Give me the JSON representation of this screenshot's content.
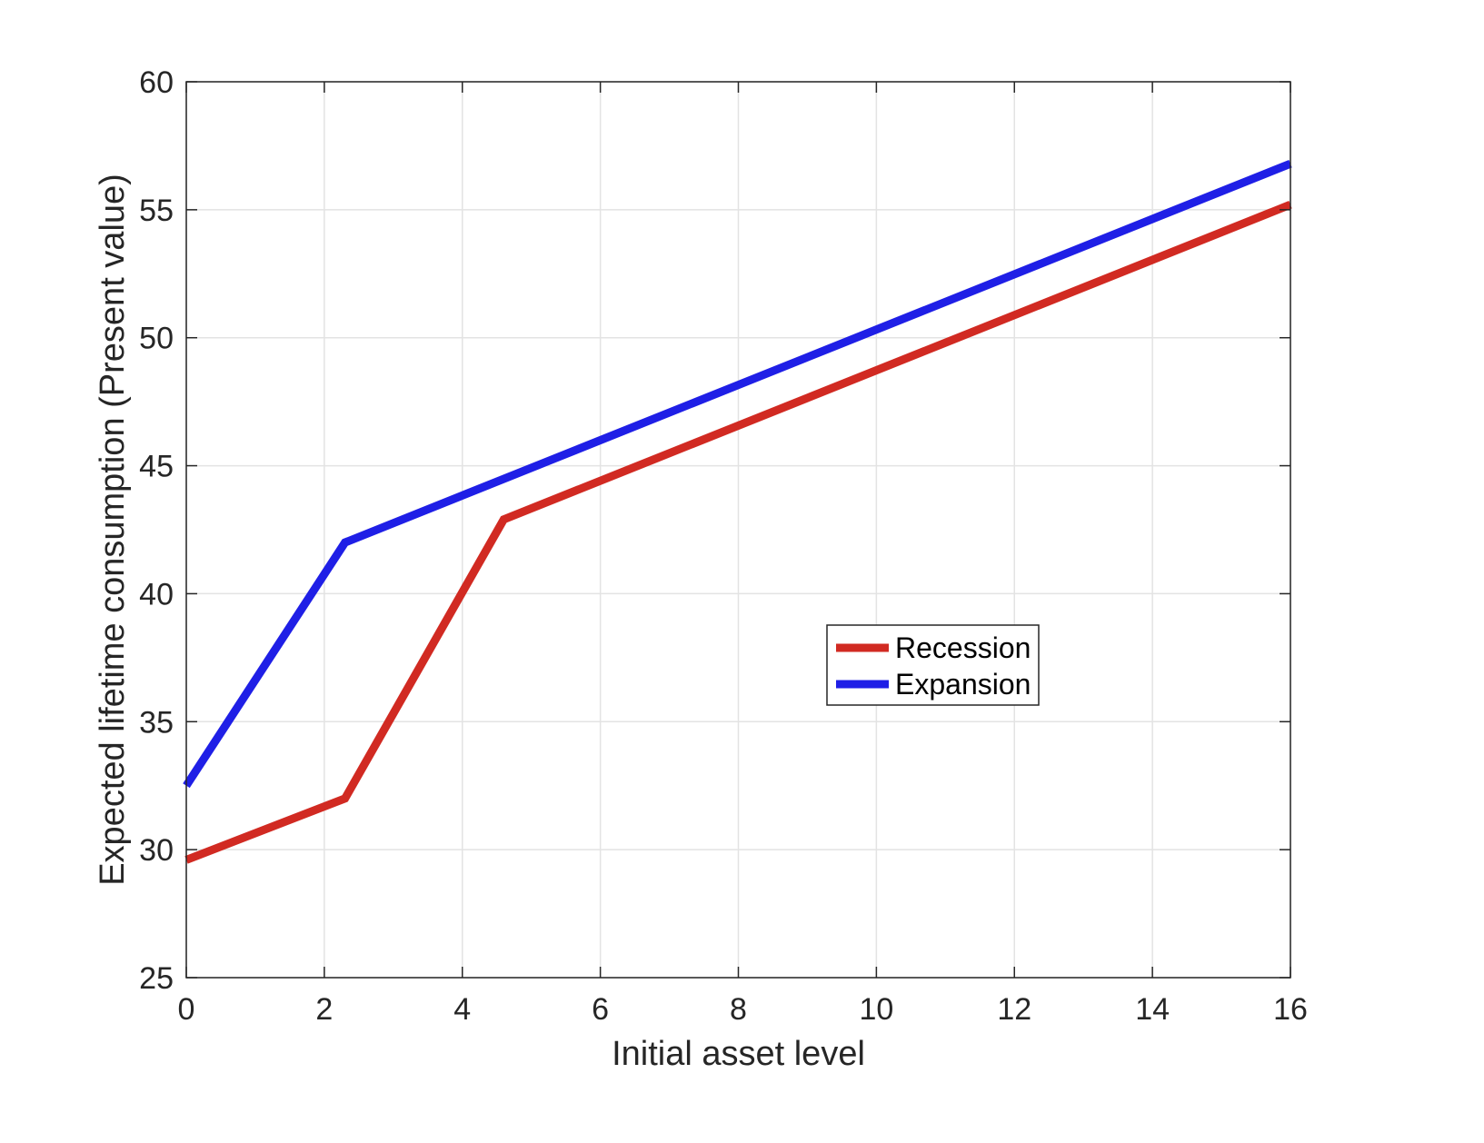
{
  "chart_data": {
    "type": "line",
    "xlabel": "Initial asset level",
    "ylabel": "Expected lifetime consumption (Present value)",
    "xlim": [
      0,
      16
    ],
    "ylim": [
      25,
      60
    ],
    "xticks": [
      0,
      2,
      4,
      6,
      8,
      10,
      12,
      14,
      16
    ],
    "yticks": [
      25,
      30,
      35,
      40,
      45,
      50,
      55,
      60
    ],
    "grid": true,
    "legend": {
      "placement": "center-right"
    },
    "series": [
      {
        "name": "Recession",
        "color": "#d12a22",
        "x": [
          0,
          2.3,
          4.6,
          16
        ],
        "y": [
          29.6,
          32.0,
          42.9,
          55.2
        ]
      },
      {
        "name": "Expansion",
        "color": "#1f1fe6",
        "x": [
          0,
          2.3,
          16
        ],
        "y": [
          32.5,
          42.0,
          56.8
        ]
      }
    ]
  }
}
